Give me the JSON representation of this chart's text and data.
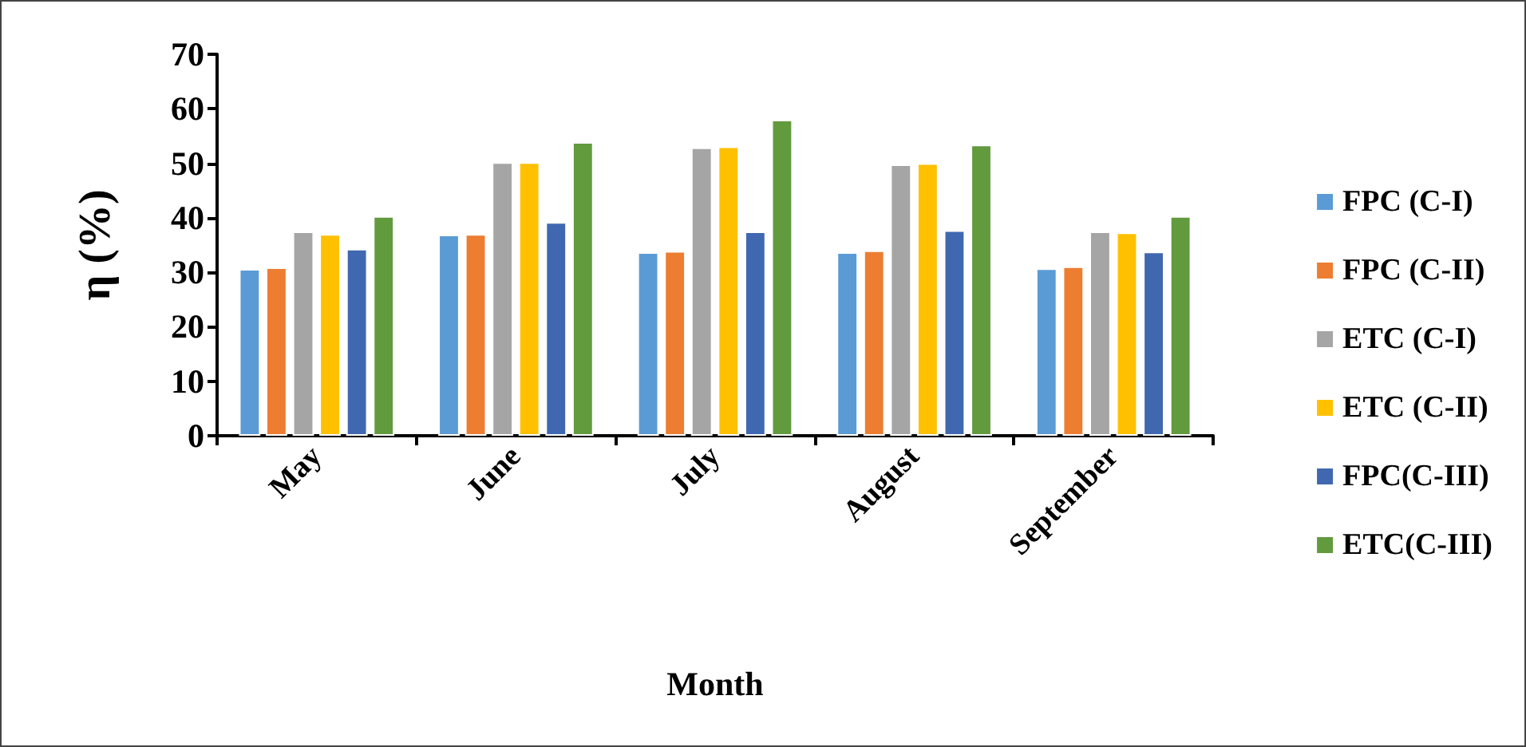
{
  "chart_data": {
    "type": "bar",
    "xlabel": "Month",
    "ylabel": "η (%)",
    "categories": [
      "May",
      "June",
      "July",
      "August",
      "September"
    ],
    "series": [
      {
        "name": "FPC (C-I)",
        "color": "#5b9bd5",
        "values": [
          30.6,
          36.9,
          33.7,
          33.7,
          30.7
        ]
      },
      {
        "name": "FPC (C-II)",
        "color": "#ed7d31",
        "values": [
          30.9,
          37.0,
          33.9,
          34.0,
          31.1
        ]
      },
      {
        "name": "ETC (C-I)",
        "color": "#a5a5a5",
        "values": [
          37.5,
          50.2,
          52.9,
          49.8,
          37.5
        ]
      },
      {
        "name": "ETC (C-II)",
        "color": "#ffc000",
        "values": [
          37.0,
          50.2,
          53.1,
          50.0,
          37.3
        ]
      },
      {
        "name": "FPC(C-III)",
        "color": "#4068b0",
        "values": [
          34.3,
          39.2,
          37.5,
          37.7,
          33.8
        ]
      },
      {
        "name": "ETC(C-III)",
        "color": "#629a3e",
        "values": [
          40.3,
          53.9,
          58.0,
          53.4,
          40.3
        ]
      }
    ],
    "ylim": [
      0,
      70
    ],
    "yticks": [
      0,
      10,
      20,
      30,
      40,
      50,
      60,
      70
    ],
    "grid": false,
    "legend": "right"
  }
}
